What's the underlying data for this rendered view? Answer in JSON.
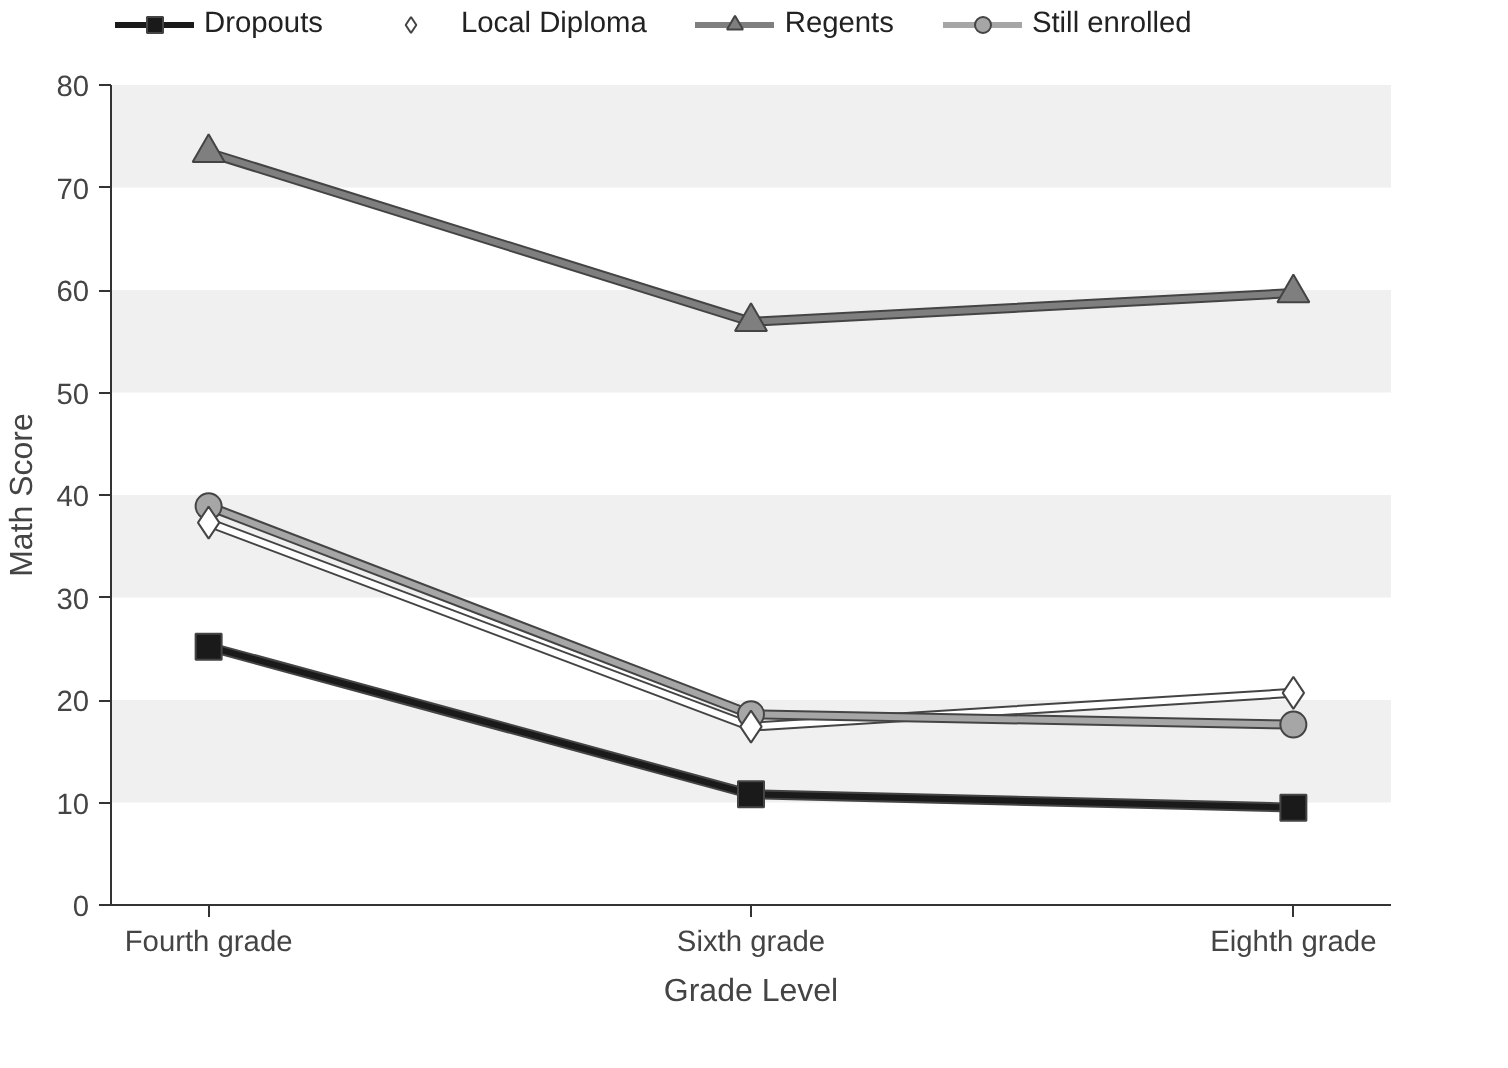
{
  "chart_data": {
    "type": "line",
    "xlabel": "Grade Level",
    "ylabel": "Math Score",
    "categories": [
      "Fourth grade",
      "Sixth grade",
      "Eighth grade"
    ],
    "series": [
      {
        "name": "Dropouts",
        "color": "#1a1a1a",
        "marker": "square",
        "values": [
          25.2,
          10.8,
          9.5
        ]
      },
      {
        "name": "Local Diploma",
        "color": "#ffffff",
        "marker": "diamond",
        "values": [
          37.3,
          17.4,
          20.7
        ]
      },
      {
        "name": "Regents",
        "color": "#7f7f7f",
        "marker": "triangle",
        "values": [
          73.4,
          56.9,
          59.7
        ]
      },
      {
        "name": "Still enrolled",
        "color": "#a6a6a6",
        "marker": "circle",
        "values": [
          38.9,
          18.6,
          17.6
        ]
      }
    ],
    "bands": [
      {
        "axis": "y",
        "from": 10,
        "to": 20,
        "color": "#f0f0f0"
      },
      {
        "axis": "y",
        "from": 30,
        "to": 40,
        "color": "#f0f0f0"
      },
      {
        "axis": "y",
        "from": 50,
        "to": 60,
        "color": "#f0f0f0"
      },
      {
        "axis": "y",
        "from": 70,
        "to": 80,
        "color": "#f0f0f0"
      }
    ],
    "ylim": [
      0,
      80
    ],
    "yticks": [
      0,
      10,
      20,
      30,
      40,
      50,
      60,
      70,
      80
    ],
    "legend": "top"
  }
}
